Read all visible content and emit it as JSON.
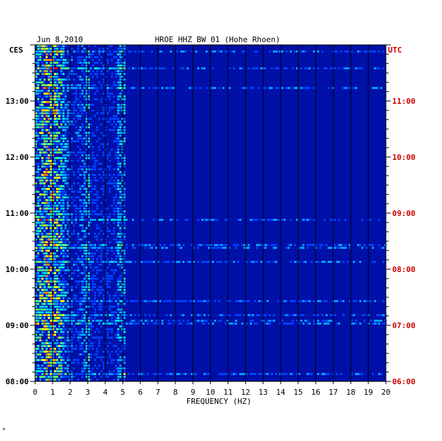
{
  "header": {
    "date": "Jun 8,2010",
    "station": "HROE HHZ BW 01 (Hohe Rhoen)",
    "left_tz": "CES",
    "right_tz": "UTC"
  },
  "footer_mark": "*",
  "colors": {
    "background": "#ffffff",
    "plot_bg": "#0010a8",
    "grid": "#000000",
    "left_labels": "#000000",
    "right_labels": "#cc0000"
  },
  "chart_data": {
    "type": "heatmap",
    "xlabel": "FREQUENCY (HZ)",
    "xlim": [
      0,
      20
    ],
    "x_ticks": [
      "0",
      "1",
      "2",
      "3",
      "4",
      "5",
      "6",
      "7",
      "8",
      "9",
      "10",
      "11",
      "12",
      "13",
      "14",
      "15",
      "16",
      "17",
      "18",
      "19",
      "20"
    ],
    "y_ticks_left": [
      "13:00",
      "12:00",
      "11:00",
      "10:00",
      "09:00",
      "08:00"
    ],
    "y_ticks_right": [
      "11:00",
      "10:00",
      "09:00",
      "08:00",
      "07:00",
      "06:00"
    ],
    "y_tick_hours_utc": [
      11,
      10,
      9,
      8,
      7,
      6
    ],
    "utc_range": [
      6,
      12
    ],
    "colormap": [
      "#0010a8",
      "#0040ff",
      "#00a0ff",
      "#00e0e0",
      "#60ff60",
      "#ffff00",
      "#ff8000",
      "#d00000"
    ]
  }
}
